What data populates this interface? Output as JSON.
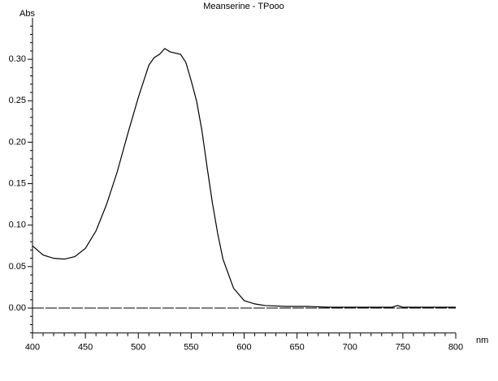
{
  "chart_data": {
    "type": "line",
    "title": "Meanserine - TPooo",
    "ylabel": "Abs",
    "xlabel": "nm",
    "x": [
      400,
      410,
      420,
      430,
      440,
      450,
      460,
      470,
      480,
      490,
      500,
      510,
      515,
      520,
      525,
      530,
      540,
      545,
      550,
      555,
      560,
      565,
      570,
      575,
      580,
      590,
      600,
      610,
      620,
      640,
      660,
      680,
      700,
      720,
      740,
      745,
      750,
      760,
      780,
      800
    ],
    "values": [
      0.075,
      0.064,
      0.06,
      0.059,
      0.062,
      0.072,
      0.093,
      0.125,
      0.164,
      0.21,
      0.254,
      0.293,
      0.302,
      0.306,
      0.313,
      0.309,
      0.306,
      0.296,
      0.274,
      0.25,
      0.215,
      0.17,
      0.127,
      0.09,
      0.059,
      0.024,
      0.009,
      0.005,
      0.003,
      0.002,
      0.002,
      0.001,
      0.001,
      0.001,
      0.001,
      0.003,
      0.001,
      0.001,
      0.001,
      0.001
    ],
    "color": "#000000",
    "xlim": [
      400,
      800
    ],
    "ylim": [
      -0.03,
      0.35
    ],
    "xticks": [
      400,
      450,
      500,
      550,
      600,
      650,
      700,
      750,
      800
    ],
    "yticks": [
      {
        "value": 0,
        "label": "0.00"
      },
      {
        "value": 0.05,
        "label": "0.05"
      },
      {
        "value": 0.1,
        "label": "0.10"
      },
      {
        "value": 0.15,
        "label": "0.15"
      },
      {
        "value": 0.2,
        "label": "0.20"
      },
      {
        "value": 0.25,
        "label": "0.25"
      },
      {
        "value": 0.3,
        "label": "0.30"
      }
    ],
    "xminorticks": [
      410,
      420,
      430,
      440,
      460,
      470,
      480,
      490,
      510,
      520,
      530,
      540,
      560,
      570,
      580,
      590,
      610,
      620,
      630,
      640,
      660,
      670,
      680,
      690,
      710,
      720,
      730,
      740,
      760,
      770,
      780,
      790
    ],
    "yminorticks": [
      -0.03,
      -0.02,
      -0.01,
      0.01,
      0.02,
      0.03,
      0.04,
      0.06,
      0.07,
      0.08,
      0.09,
      0.11,
      0.12,
      0.13,
      0.14,
      0.16,
      0.17,
      0.18,
      0.19,
      0.21,
      0.22,
      0.23,
      0.24,
      0.26,
      0.27,
      0.28,
      0.29,
      0.31,
      0.32,
      0.33,
      0.34
    ]
  }
}
